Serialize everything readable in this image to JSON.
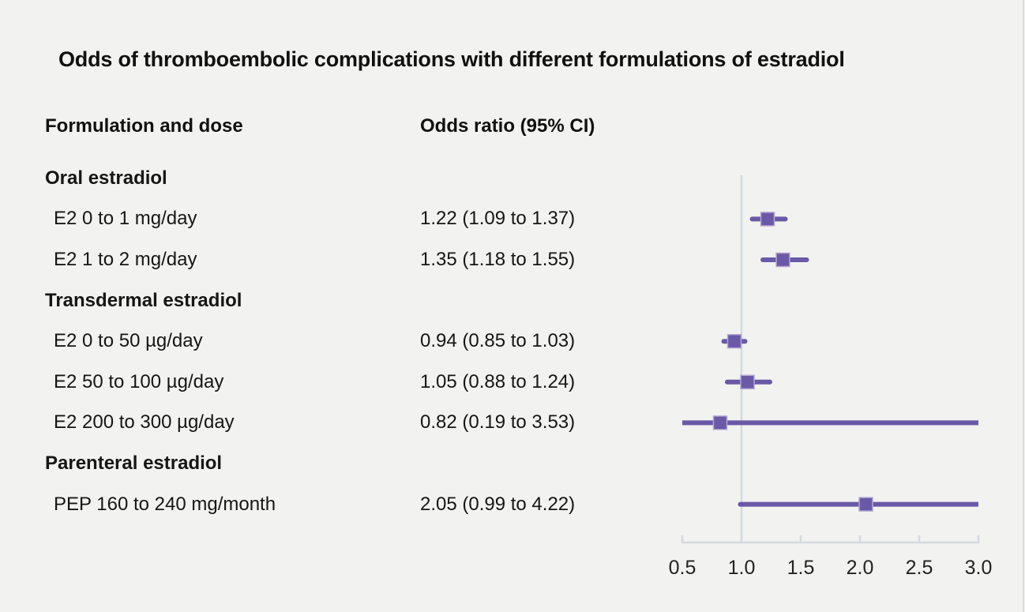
{
  "title": "Odds of thromboembolic complications with different formulations of estradiol",
  "columns": {
    "formulation": "Formulation and dose",
    "odds": "Odds ratio (95% CI)"
  },
  "colors": {
    "accent": "#6a59a6",
    "marker_edge": "#b3a7d2",
    "axis": "#d4d9de",
    "tick_label": "#222222",
    "background": "#f2f2f1",
    "right_edge_line": "#dcdcda"
  },
  "chart_data": {
    "type": "forest",
    "title": "Odds of thromboembolic complications with different formulations of estradiol",
    "xlim": [
      0.5,
      3.0
    ],
    "ticks": [
      0.5,
      1.0,
      1.5,
      2.0,
      2.5,
      3.0
    ],
    "reference_line": 1.0,
    "grid": false,
    "rows": [
      {
        "type": "group",
        "label": "Oral estradiol"
      },
      {
        "type": "item",
        "label": "E2 0 to 1 mg/day",
        "value_text": "1.22 (1.09 to 1.37)",
        "estimate": 1.22,
        "ci_low": 1.09,
        "ci_high": 1.37
      },
      {
        "type": "item",
        "label": "E2 1 to 2 mg/day",
        "value_text": "1.35 (1.18 to 1.55)",
        "estimate": 1.35,
        "ci_low": 1.18,
        "ci_high": 1.55
      },
      {
        "type": "group",
        "label": "Transdermal estradiol"
      },
      {
        "type": "item",
        "label": "E2 0 to 50 µg/day",
        "value_text": "0.94 (0.85 to 1.03)",
        "estimate": 0.94,
        "ci_low": 0.85,
        "ci_high": 1.03
      },
      {
        "type": "item",
        "label": "E2 50 to 100 µg/day",
        "value_text": "1.05 (0.88 to 1.24)",
        "estimate": 1.05,
        "ci_low": 0.88,
        "ci_high": 1.24
      },
      {
        "type": "item",
        "label": "E2 200 to 300 µg/day",
        "value_text": "0.82 (0.19 to 3.53)",
        "estimate": 0.82,
        "ci_low": 0.19,
        "ci_high": 3.53
      },
      {
        "type": "group",
        "label": "Parenteral estradiol"
      },
      {
        "type": "item",
        "label": "PEP 160 to 240 mg/month",
        "value_text": "2.05 (0.99 to 4.22)",
        "estimate": 2.05,
        "ci_low": 0.99,
        "ci_high": 4.22
      }
    ]
  }
}
